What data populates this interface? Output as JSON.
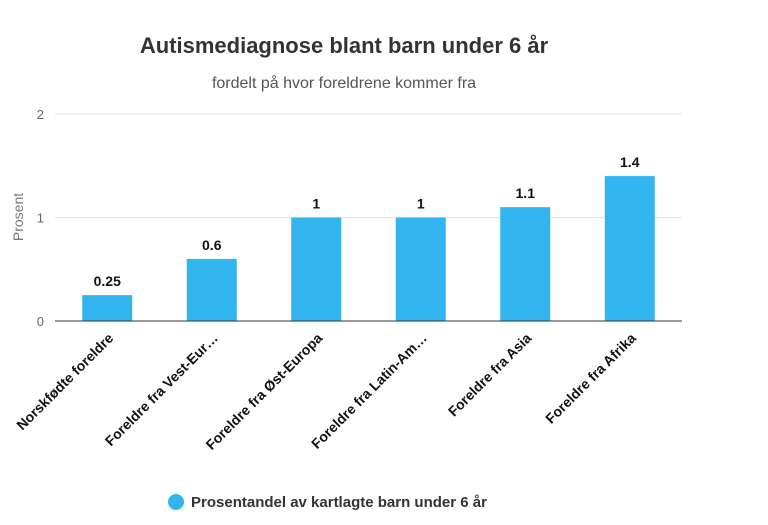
{
  "chart_data": {
    "type": "bar",
    "title": "Autismediagnose blant barn under 6 år",
    "subtitle": "fordelt på hvor foreldrene kommer fra",
    "ylabel": "Prosent",
    "xlabel": "",
    "ylim": [
      0,
      2
    ],
    "yticks": [
      0,
      1,
      2
    ],
    "grid": true,
    "legend_position": "bottom",
    "categories": [
      "Norskfødte foreldre",
      "Foreldre fra Vest-Eur…",
      "Foreldre fra Øst-Europa",
      "Foreldre fra Latin-Am…",
      "Foreldre fra Asia",
      "Foreldre fra Afrika"
    ],
    "series": [
      {
        "name": "Prosentandel av kartlagte barn under 6 år",
        "values": [
          0.25,
          0.6,
          1,
          1,
          1.1,
          1.4
        ],
        "labels": [
          "0.25",
          "0.6",
          "1",
          "1",
          "1.1",
          "1.4"
        ],
        "color": "#33b5ef"
      }
    ]
  }
}
